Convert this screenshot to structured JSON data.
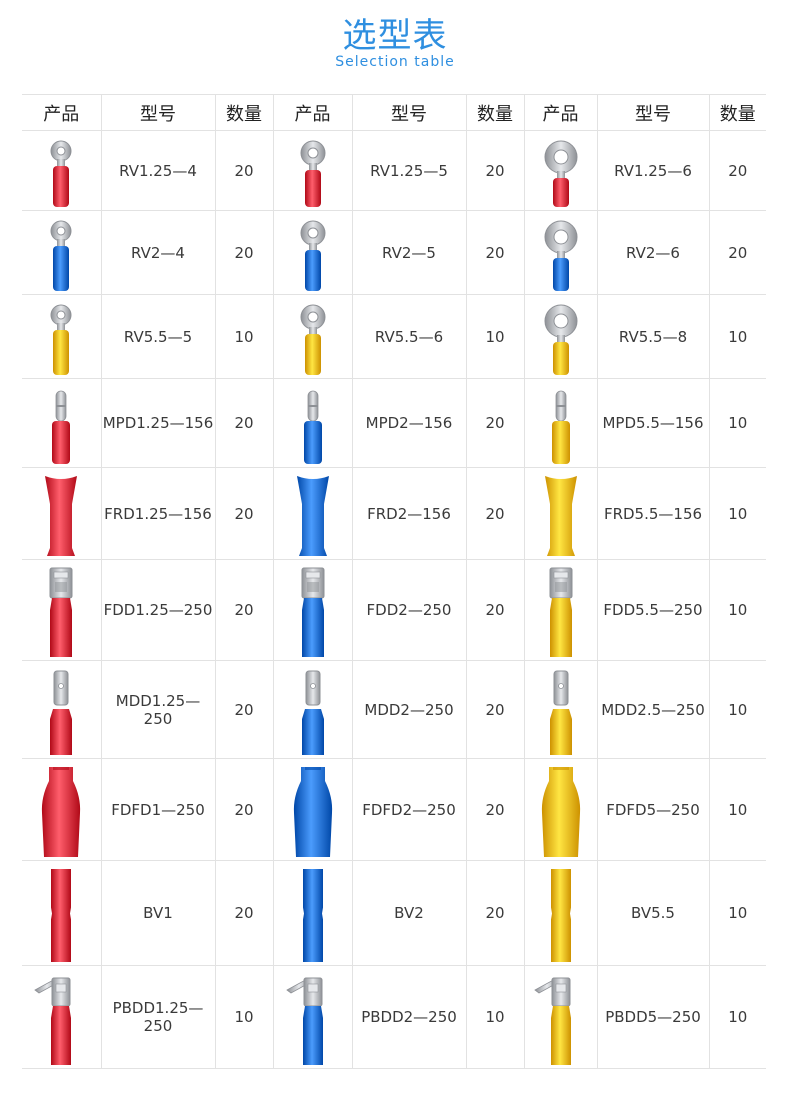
{
  "header": {
    "title": "选型表",
    "subtitle": "Selection table"
  },
  "table": {
    "headers": [
      "产品",
      "型号",
      "数量",
      "产品",
      "型号",
      "数量",
      "产品",
      "型号",
      "数量"
    ],
    "colors": {
      "red": "#d8313f",
      "blue": "#1e6fd0",
      "yellow": "#f5b916",
      "metal": "#b9bcc2"
    },
    "rows": [
      {
        "kind": "ring",
        "cells": [
          {
            "color": "red",
            "model": "RV1.25—4",
            "qty": "20",
            "size": "s"
          },
          {
            "color": "red",
            "model": "RV1.25—5",
            "qty": "20",
            "size": "m"
          },
          {
            "color": "red",
            "model": "RV1.25—6",
            "qty": "20",
            "size": "l"
          }
        ]
      },
      {
        "kind": "ring",
        "cells": [
          {
            "color": "blue",
            "model": "RV2—4",
            "qty": "20",
            "size": "s"
          },
          {
            "color": "blue",
            "model": "RV2—5",
            "qty": "20",
            "size": "m"
          },
          {
            "color": "blue",
            "model": "RV2—6",
            "qty": "20",
            "size": "l"
          }
        ]
      },
      {
        "kind": "ring",
        "cells": [
          {
            "color": "yellow",
            "model": "RV5.5—5",
            "qty": "10",
            "size": "s"
          },
          {
            "color": "yellow",
            "model": "RV5.5—6",
            "qty": "10",
            "size": "m"
          },
          {
            "color": "yellow",
            "model": "RV5.5—8",
            "qty": "10",
            "size": "l"
          }
        ]
      },
      {
        "kind": "bullet",
        "cells": [
          {
            "color": "red",
            "model": "MPD1.25—156",
            "qty": "20"
          },
          {
            "color": "blue",
            "model": "MPD2—156",
            "qty": "20"
          },
          {
            "color": "yellow",
            "model": "MPD5.5—156",
            "qty": "10"
          }
        ]
      },
      {
        "kind": "sleeve",
        "cells": [
          {
            "color": "red",
            "model": "FRD1.25—156",
            "qty": "20"
          },
          {
            "color": "blue",
            "model": "FRD2—156",
            "qty": "20"
          },
          {
            "color": "yellow",
            "model": "FRD5.5—156",
            "qty": "10"
          }
        ]
      },
      {
        "kind": "female",
        "cells": [
          {
            "color": "red",
            "model": "FDD1.25—250",
            "qty": "20"
          },
          {
            "color": "blue",
            "model": "FDD2—250",
            "qty": "20"
          },
          {
            "color": "yellow",
            "model": "FDD5.5—250",
            "qty": "10"
          }
        ]
      },
      {
        "kind": "male",
        "cells": [
          {
            "color": "red",
            "model": "MDD1.25—250",
            "qty": "20"
          },
          {
            "color": "blue",
            "model": "MDD2—250",
            "qty": "20"
          },
          {
            "color": "yellow",
            "model": "MDD2.5—250",
            "qty": "10"
          }
        ]
      },
      {
        "kind": "fullsleeve",
        "cells": [
          {
            "color": "red",
            "model": "FDFD1—250",
            "qty": "20"
          },
          {
            "color": "blue",
            "model": "FDFD2—250",
            "qty": "20"
          },
          {
            "color": "yellow",
            "model": "FDFD5—250",
            "qty": "10"
          }
        ]
      },
      {
        "kind": "butt",
        "cells": [
          {
            "color": "red",
            "model": "BV1",
            "qty": "20"
          },
          {
            "color": "blue",
            "model": "BV2",
            "qty": "20"
          },
          {
            "color": "yellow",
            "model": "BV5.5",
            "qty": "10"
          }
        ]
      },
      {
        "kind": "piggy",
        "cells": [
          {
            "color": "red",
            "model": "PBDD1.25—250",
            "qty": "10"
          },
          {
            "color": "blue",
            "model": "PBDD2—250",
            "qty": "10"
          },
          {
            "color": "yellow",
            "model": "PBDD5—250",
            "qty": "10"
          }
        ]
      }
    ]
  }
}
